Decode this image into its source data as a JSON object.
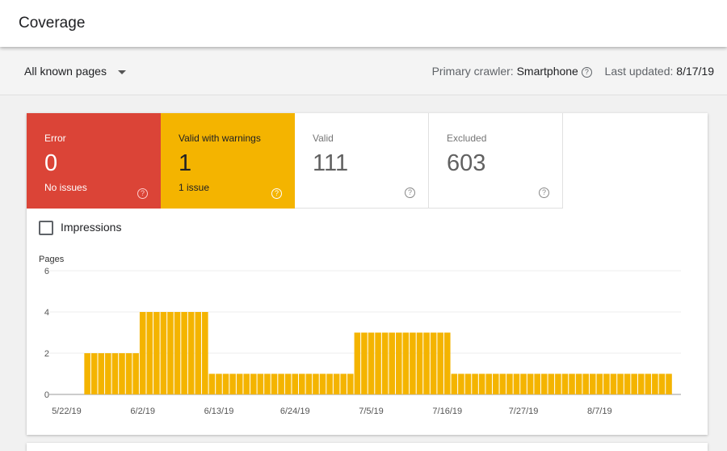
{
  "header": {
    "title": "Coverage"
  },
  "filter": {
    "selected": "All known pages",
    "crawler_label": "Primary crawler:",
    "crawler_value": "Smartphone",
    "updated_label": "Last updated:",
    "updated_value": "8/17/19",
    "help_icon": "?"
  },
  "tiles": [
    {
      "label": "Error",
      "value": "0",
      "sub": "No issues"
    },
    {
      "label": "Valid with warnings",
      "value": "1",
      "sub": "1 issue"
    },
    {
      "label": "Valid",
      "value": "111"
    },
    {
      "label": "Excluded",
      "value": "603"
    }
  ],
  "impressions_label": "Impressions",
  "colors": {
    "error": "#db4437",
    "warning": "#f4b400",
    "bar": "#f4b400"
  },
  "chart_data": {
    "type": "bar",
    "ylabel": "Pages",
    "ylim": [
      0,
      6
    ],
    "yticks": [
      "0",
      "2",
      "4",
      "6"
    ],
    "start_date": "5/20/19",
    "xtick_labels": [
      "5/22/19",
      "6/2/19",
      "6/13/19",
      "6/24/19",
      "7/5/19",
      "7/16/19",
      "7/27/19",
      "8/7/19"
    ],
    "xtick_indices": [
      2,
      13,
      24,
      35,
      46,
      57,
      68,
      79
    ],
    "values": [
      0,
      0,
      0,
      0,
      0,
      2,
      2,
      2,
      2,
      2,
      2,
      2,
      2,
      4,
      4,
      4,
      4,
      4,
      4,
      4,
      4,
      4,
      4,
      1,
      1,
      1,
      1,
      1,
      1,
      1,
      1,
      1,
      1,
      1,
      1,
      1,
      1,
      1,
      1,
      1,
      1,
      1,
      1,
      1,
      3,
      3,
      3,
      3,
      3,
      3,
      3,
      3,
      3,
      3,
      3,
      3,
      3,
      3,
      1,
      1,
      1,
      1,
      1,
      1,
      1,
      1,
      1,
      1,
      1,
      1,
      1,
      1,
      1,
      1,
      1,
      1,
      1,
      1,
      1,
      1,
      1,
      1,
      1,
      1,
      1,
      1,
      1,
      1,
      1,
      1
    ]
  }
}
